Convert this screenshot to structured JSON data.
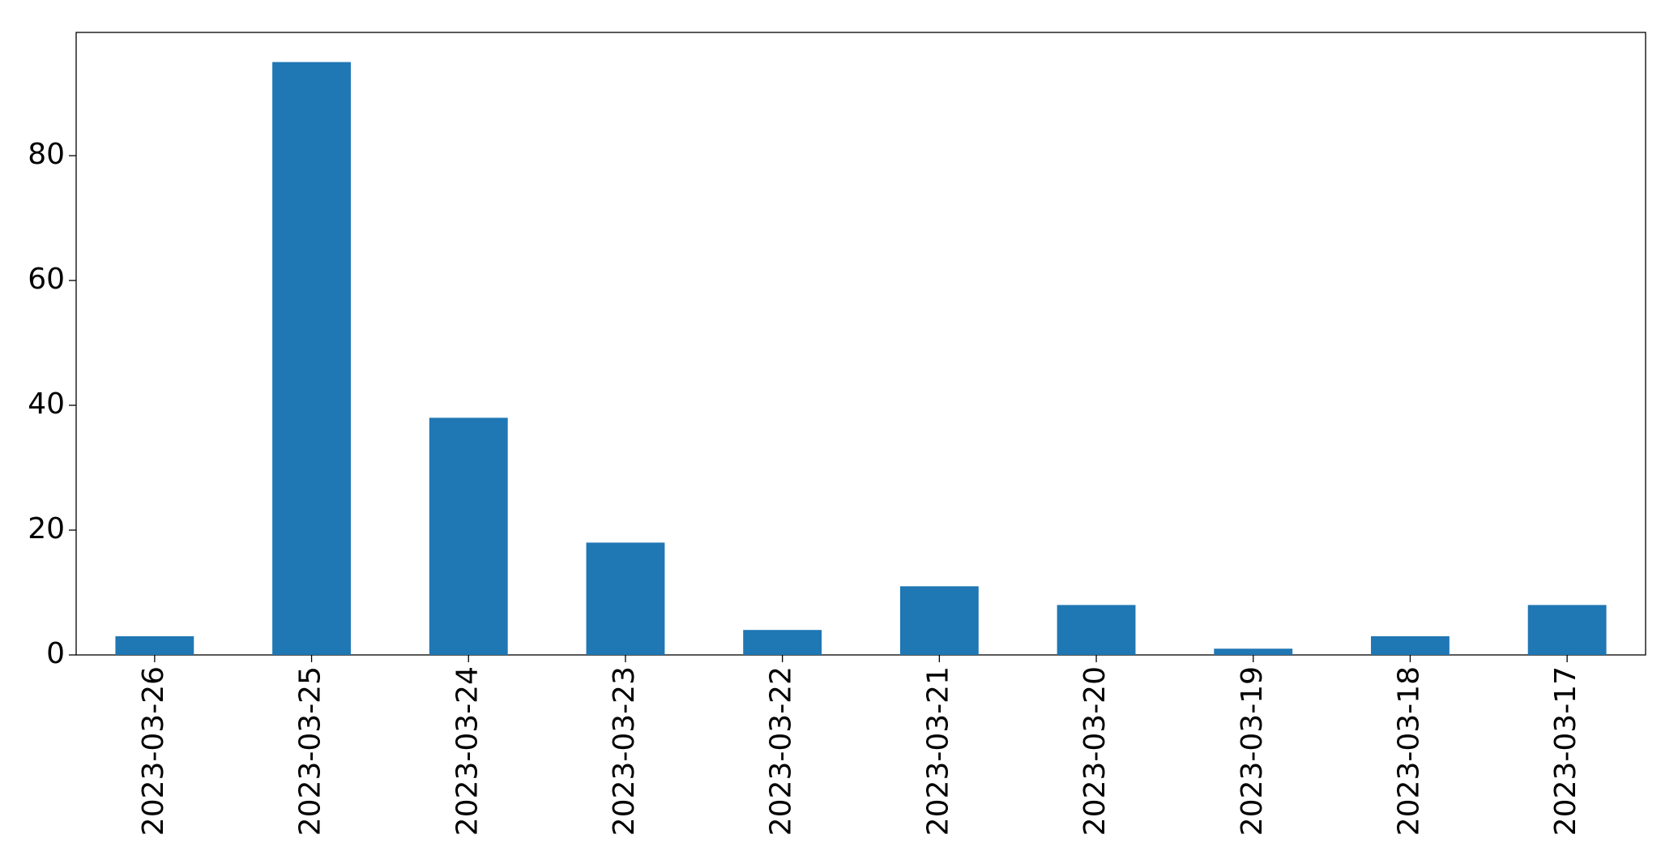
{
  "chart_data": {
    "type": "bar",
    "categories": [
      "2023-03-26",
      "2023-03-25",
      "2023-03-24",
      "2023-03-23",
      "2023-03-22",
      "2023-03-21",
      "2023-03-20",
      "2023-03-19",
      "2023-03-18",
      "2023-03-17"
    ],
    "values": [
      3,
      95,
      38,
      18,
      4,
      11,
      8,
      1,
      3,
      8
    ],
    "color": "#1f77b4",
    "ylim": [
      0,
      99.75
    ],
    "yticks": [
      0,
      20,
      40,
      60,
      80
    ],
    "grid": false
  }
}
